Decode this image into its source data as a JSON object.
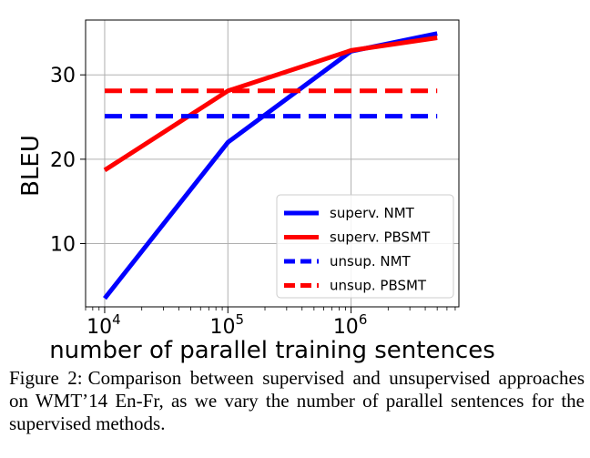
{
  "chart_data": {
    "type": "line",
    "xlabel": "number of parallel training sentences",
    "ylabel": "BLEU",
    "xscale": "log",
    "xlim": [
      7000,
      7500000
    ],
    "ylim": [
      2.5,
      36.5
    ],
    "xticks": [
      {
        "value": 10000,
        "base": "10",
        "exp": "4"
      },
      {
        "value": 100000,
        "base": "10",
        "exp": "5"
      },
      {
        "value": 1000000,
        "base": "10",
        "exp": "6"
      }
    ],
    "yticks": [
      10,
      20,
      30
    ],
    "grid": true,
    "legend_position": "lower-right",
    "series": [
      {
        "name": "superv. NMT",
        "color": "#0000ff",
        "style": "solid",
        "x": [
          10000,
          100000,
          1000000,
          5000000
        ],
        "y": [
          3.5,
          22.0,
          32.8,
          34.9
        ]
      },
      {
        "name": "superv. PBSMT",
        "color": "#ff0000",
        "style": "solid",
        "x": [
          10000,
          100000,
          1000000,
          5000000
        ],
        "y": [
          18.7,
          28.1,
          32.9,
          34.4
        ]
      },
      {
        "name": "unsup. NMT",
        "color": "#0000ff",
        "style": "dashed",
        "x": [
          10000,
          5000000
        ],
        "y": [
          25.1,
          25.1
        ]
      },
      {
        "name": "unsup. PBSMT",
        "color": "#ff0000",
        "style": "dashed",
        "x": [
          10000,
          5000000
        ],
        "y": [
          28.1,
          28.1
        ]
      }
    ]
  },
  "caption": {
    "prefix": "Figure 2:",
    "text": "Comparison between supervised and unsupervised approaches on WMT’14 En-Fr, as we vary the number of parallel sentences for the supervised methods."
  }
}
